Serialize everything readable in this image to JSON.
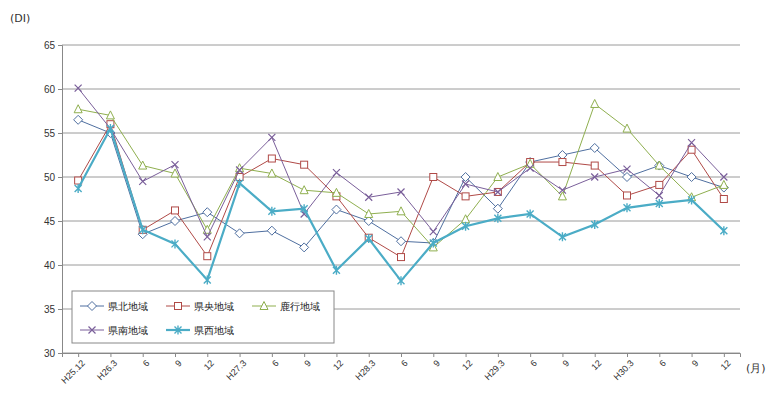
{
  "chart_data": {
    "type": "line",
    "y_label": "(DI)",
    "x_label": "(月)",
    "categories": [
      "H25.12",
      "H26.3",
      "6",
      "9",
      "12",
      "H27.3",
      "6",
      "9",
      "12",
      "H28.3",
      "6",
      "9",
      "12",
      "H29.3",
      "6",
      "9",
      "12",
      "H30.3",
      "6",
      "9",
      "12"
    ],
    "ylim": [
      30,
      65
    ],
    "yticks": [
      30,
      35,
      40,
      45,
      50,
      55,
      60,
      65
    ],
    "grid": true,
    "legend": "lower left",
    "series": [
      {
        "name": "県北地域",
        "color": "#4f6fa0",
        "marker": "diamond",
        "values": [
          56.5,
          55,
          43.5,
          45,
          46,
          43.6,
          43.9,
          42,
          46.3,
          45,
          42.7,
          42.5,
          50,
          46.4,
          51.7,
          52.5,
          53.3,
          50,
          51.3,
          50,
          48.8
        ]
      },
      {
        "name": "県央地域",
        "color": "#b04a47",
        "marker": "square",
        "values": [
          49.6,
          56,
          44,
          46.2,
          41,
          50,
          52.1,
          51.4,
          47.8,
          43.1,
          40.9,
          50,
          47.8,
          48.3,
          51.7,
          51.7,
          51.3,
          47.9,
          49.1,
          53.1,
          47.5
        ]
      },
      {
        "name": "鹿行地域",
        "color": "#8faf4f",
        "marker": "triangle",
        "values": [
          57.7,
          57,
          51.3,
          50.4,
          44,
          51,
          50.4,
          48.5,
          48.2,
          45.8,
          46.1,
          42,
          45.2,
          50,
          51.5,
          47.8,
          58.3,
          55.5,
          51.3,
          47.7,
          49.1
        ]
      },
      {
        "name": "県南地域",
        "color": "#7a5f9a",
        "marker": "cross",
        "values": [
          60.1,
          55.5,
          49.5,
          51.4,
          43.2,
          50.8,
          54.5,
          45.8,
          50.5,
          47.7,
          48.3,
          43.8,
          49.2,
          48.3,
          51,
          48.5,
          50,
          50.9,
          47.9,
          53.9,
          50
        ]
      },
      {
        "name": "県西地域",
        "color": "#4bacc6",
        "marker": "asterisk",
        "values": [
          48.7,
          55.5,
          44,
          42.4,
          38.3,
          49.3,
          46.1,
          46.4,
          39.4,
          43,
          38.2,
          42.5,
          44.4,
          45.3,
          45.8,
          43.2,
          44.6,
          46.5,
          47,
          47.4,
          43.9
        ]
      }
    ]
  }
}
